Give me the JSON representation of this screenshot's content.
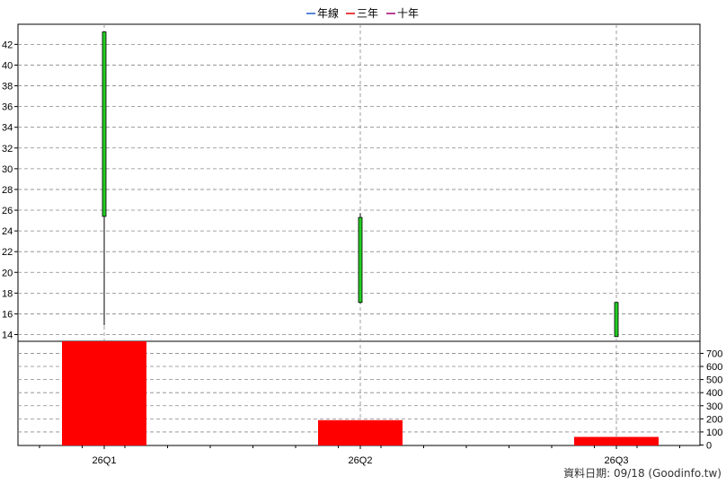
{
  "chart_data": {
    "type": "candlestick+bar",
    "legend": [
      {
        "name": "年線",
        "color": "#1f5fd0"
      },
      {
        "name": "三年",
        "color": "#e00000"
      },
      {
        "name": "十年",
        "color": "#a0006a"
      }
    ],
    "categories": [
      "26Q1",
      "26Q2",
      "26Q3"
    ],
    "price_axis": {
      "ticks": [
        14,
        16,
        18,
        20,
        22,
        24,
        26,
        28,
        30,
        32,
        34,
        36,
        38,
        40,
        42
      ]
    },
    "volume_axis": {
      "ticks": [
        0,
        100,
        200,
        300,
        400,
        500,
        600,
        700
      ]
    },
    "candles": [
      {
        "category": "26Q1",
        "open": 25.4,
        "high": 43.2,
        "low": 14.9,
        "close": 43.2
      },
      {
        "category": "26Q2",
        "open": 17.1,
        "high": 25.7,
        "low": 17.0,
        "close": 25.3
      },
      {
        "category": "26Q3",
        "open": 13.8,
        "high": 17.1,
        "low": 13.8,
        "close": 17.1
      }
    ],
    "volumes": [
      {
        "category": "26Q1",
        "value": 800
      },
      {
        "category": "26Q2",
        "value": 190
      },
      {
        "category": "26Q3",
        "value": 62
      }
    ],
    "colors": {
      "up_candle": "#22cc22",
      "volume_bar": "#ff0000",
      "grid": "#888888"
    },
    "grid": true
  },
  "footer": {
    "text": "資料日期: 09/18  (Goodinfo.tw)"
  }
}
